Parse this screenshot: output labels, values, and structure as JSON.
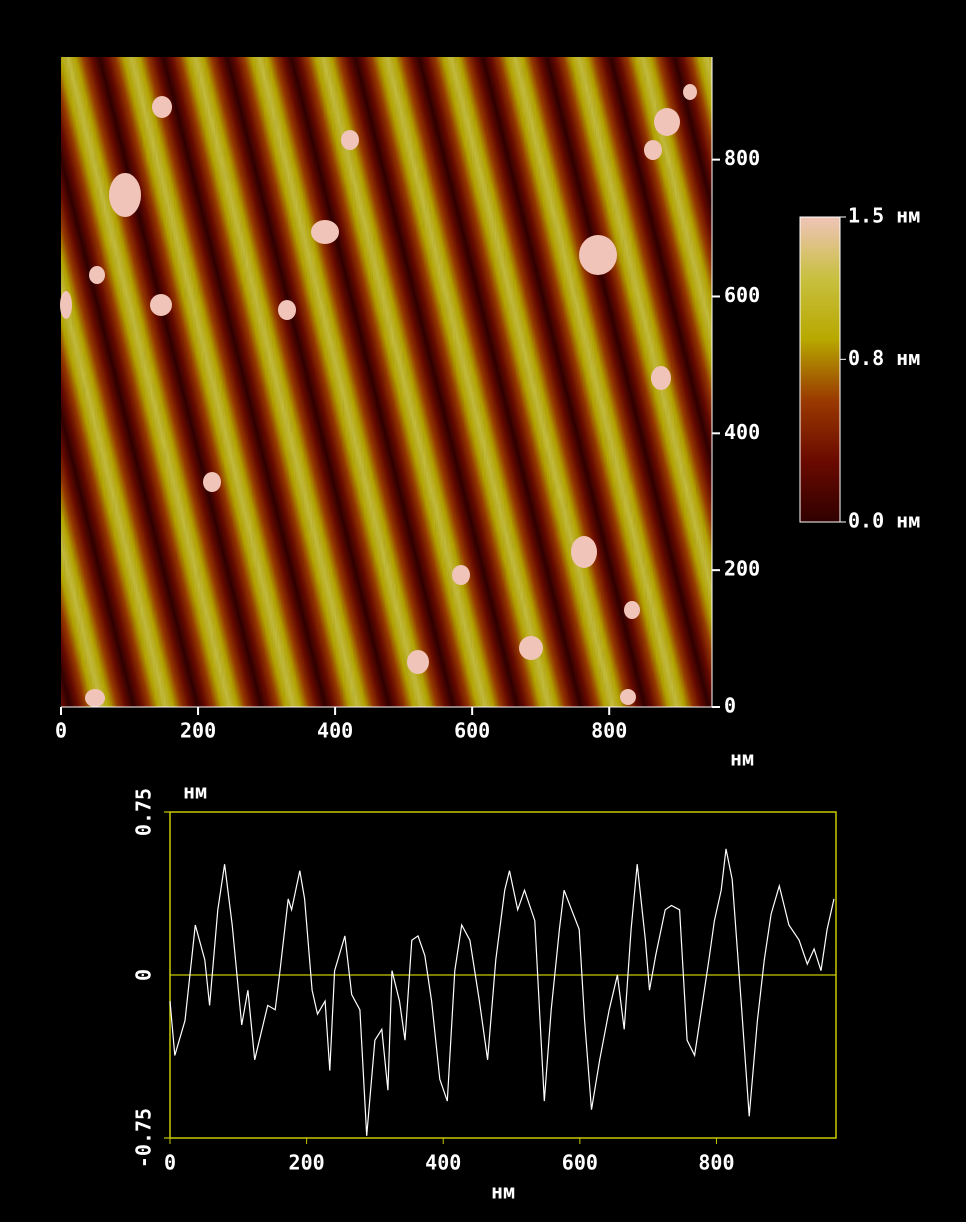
{
  "chart_data": [
    {
      "type": "image",
      "xlim": [
        0,
        950
      ],
      "ylim": [
        0,
        950
      ],
      "xticks": [
        0,
        200,
        400,
        600,
        800
      ],
      "yticks": [
        0,
        200,
        400,
        600,
        800
      ],
      "xlabel": "нм",
      "colorbar": {
        "clim": [
          0,
          1.5
        ],
        "ticks": [
          {
            "value": 1.5,
            "label": "1.5 нм"
          },
          {
            "value": 0.8,
            "label": "0.8 нм"
          },
          {
            "value": 0,
            "label": "0.0 нм"
          }
        ],
        "colors": [
          "#300000",
          "#6a0a00",
          "#9a3a00",
          "#b8a800",
          "#c8c040",
          "#f0c4b8"
        ]
      }
    },
    {
      "type": "line",
      "xlim": [
        0,
        975
      ],
      "ylim": [
        -0.75,
        0.75
      ],
      "xticks": [
        0,
        200,
        400,
        600,
        800
      ],
      "yticks": [
        -0.75,
        0,
        0.75
      ],
      "xlabel": "нм",
      "ylabel": "нм",
      "color": "#ffffff",
      "frame_color": "#c8c800",
      "x": [
        0,
        7,
        22,
        37,
        51,
        58,
        70,
        80,
        91,
        105,
        114,
        124,
        143,
        154,
        161,
        173,
        178,
        190,
        197,
        208,
        216,
        227,
        234,
        241,
        256,
        266,
        278,
        288,
        300,
        310,
        319,
        325,
        336,
        344,
        354,
        363,
        373,
        383,
        395,
        406,
        417,
        427,
        439,
        453,
        465,
        477,
        490,
        497,
        509,
        519,
        534,
        548,
        558,
        570,
        577,
        588,
        599,
        607,
        617,
        629,
        643,
        655,
        665,
        675,
        684,
        696,
        702,
        711,
        725,
        734,
        746,
        757,
        768,
        779,
        789,
        797,
        807,
        814,
        823,
        836,
        848,
        860,
        870,
        880,
        892,
        906,
        921,
        933,
        943,
        953,
        962,
        972
      ],
      "values": [
        -0.12,
        -0.37,
        -0.21,
        0.23,
        0.07,
        -0.14,
        0.3,
        0.51,
        0.23,
        -0.23,
        -0.07,
        -0.39,
        -0.14,
        -0.16,
        0.02,
        0.35,
        0.3,
        0.48,
        0.35,
        -0.07,
        -0.18,
        -0.12,
        -0.44,
        0.02,
        0.18,
        -0.09,
        -0.16,
        -0.74,
        -0.3,
        -0.25,
        -0.53,
        0.02,
        -0.12,
        -0.3,
        0.16,
        0.18,
        0.09,
        -0.12,
        -0.48,
        -0.58,
        0.02,
        0.23,
        0.16,
        -0.12,
        -0.39,
        0.07,
        0.39,
        0.48,
        0.3,
        0.39,
        0.25,
        -0.58,
        -0.16,
        0.21,
        0.39,
        0.3,
        0.21,
        -0.21,
        -0.62,
        -0.39,
        -0.16,
        0,
        -0.25,
        0.21,
        0.51,
        0.16,
        -0.07,
        0.09,
        0.3,
        0.32,
        0.3,
        -0.3,
        -0.37,
        -0.14,
        0.07,
        0.25,
        0.39,
        0.58,
        0.44,
        -0.12,
        -0.65,
        -0.21,
        0.07,
        0.28,
        0.41,
        0.23,
        0.16,
        0.05,
        0.12,
        0.02,
        0.21,
        0.35
      ]
    }
  ]
}
